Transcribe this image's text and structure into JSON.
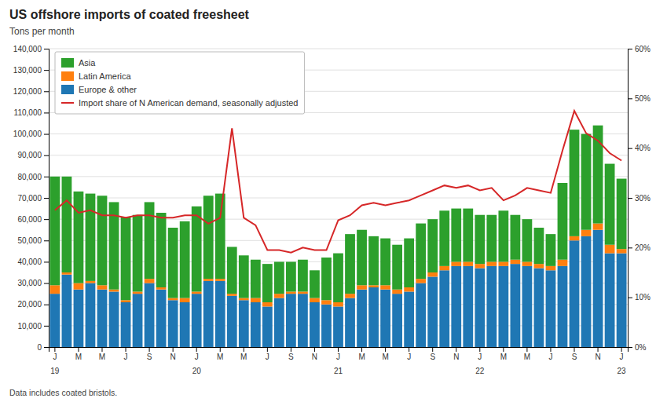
{
  "chart_data": {
    "type": "bar",
    "stacked": true,
    "title": "US offshore imports of coated freesheet",
    "subtitle": "Tons per month",
    "footnote": "Data includes coated bristols.",
    "categories": [
      "J",
      null,
      "M",
      null,
      "M",
      null,
      "J",
      null,
      "S",
      null,
      "N",
      null,
      "J",
      null,
      "M",
      null,
      "M",
      null,
      "J",
      null,
      "S",
      null,
      "N",
      null,
      "J",
      null,
      "M",
      null,
      "M",
      null,
      "J",
      null,
      "S",
      null,
      "N",
      null,
      "J",
      null,
      "M",
      null,
      "M",
      null,
      "J",
      null,
      "S",
      null,
      "N",
      null,
      "J"
    ],
    "annotations": [
      {
        "text": "19",
        "category": 0
      },
      {
        "text": "20",
        "category": 12
      },
      {
        "text": "21",
        "category": 24
      },
      {
        "text": "22",
        "category": 36
      },
      {
        "text": "23",
        "category": 48
      }
    ],
    "series": [
      {
        "name": "Europe & other",
        "type": "bar",
        "values": [
          25000,
          34000,
          27000,
          30000,
          27000,
          26000,
          21000,
          25000,
          30000,
          27000,
          22000,
          21000,
          25000,
          31000,
          31000,
          24000,
          22000,
          21000,
          19000,
          23000,
          25000,
          25000,
          21000,
          20000,
          19000,
          23000,
          27000,
          28000,
          27000,
          25000,
          26000,
          30000,
          33000,
          36000,
          38000,
          38000,
          37000,
          38000,
          38000,
          39000,
          38000,
          37000,
          36000,
          38000,
          50000,
          52000,
          55000,
          44000,
          44000
        ]
      },
      {
        "name": "Latin America",
        "type": "bar",
        "values": [
          4000,
          1000,
          3000,
          1000,
          2000,
          1000,
          1000,
          1000,
          2000,
          1000,
          1000,
          2000,
          1000,
          1000,
          1000,
          1000,
          1000,
          2000,
          2000,
          2000,
          1000,
          1000,
          2000,
          2000,
          2000,
          2000,
          2000,
          1000,
          2000,
          2000,
          2000,
          2000,
          2000,
          2000,
          2000,
          2000,
          2000,
          2000,
          2000,
          2000,
          2000,
          2000,
          2000,
          3000,
          2000,
          3000,
          3000,
          4000,
          2000
        ]
      },
      {
        "name": "Asia",
        "type": "bar",
        "values": [
          51000,
          45000,
          43000,
          41000,
          42000,
          41000,
          39000,
          36000,
          36000,
          35000,
          33000,
          36000,
          40000,
          39000,
          40000,
          22000,
          20000,
          18000,
          18000,
          15000,
          14000,
          15000,
          13000,
          20000,
          23000,
          28000,
          26000,
          23000,
          22000,
          21000,
          23000,
          26000,
          25000,
          26000,
          25000,
          25000,
          23000,
          22000,
          24000,
          21000,
          20000,
          17000,
          15000,
          36000,
          50000,
          45000,
          46000,
          38000,
          33000
        ]
      },
      {
        "name": "Import share of N American demand, seasonally adjusted",
        "type": "line",
        "axis": "y2",
        "values": [
          0.275,
          0.295,
          0.27,
          0.275,
          0.265,
          0.265,
          0.26,
          0.265,
          0.265,
          0.26,
          0.26,
          0.265,
          0.265,
          0.248,
          0.26,
          0.44,
          0.26,
          0.245,
          0.195,
          0.195,
          0.19,
          0.2,
          0.195,
          0.195,
          0.255,
          0.265,
          0.285,
          0.29,
          0.285,
          0.29,
          0.295,
          0.305,
          0.315,
          0.325,
          0.32,
          0.325,
          0.315,
          0.32,
          0.295,
          0.305,
          0.32,
          0.315,
          0.31,
          0.395,
          0.475,
          0.43,
          0.415,
          0.39,
          0.375
        ]
      }
    ],
    "ylim": [
      0,
      140000
    ],
    "yticks": [
      0,
      {
        "value": 10000,
        "label": "10,000"
      },
      {
        "value": 20000,
        "label": "20,000"
      },
      {
        "value": 30000,
        "label": "30,000"
      },
      {
        "value": 40000,
        "label": "40,000"
      },
      {
        "value": 50000,
        "label": "50,000"
      },
      {
        "value": 60000,
        "label": "60,000"
      },
      {
        "value": 70000,
        "label": "70,000"
      },
      {
        "value": 80000,
        "label": "80,000"
      },
      {
        "value": 90000,
        "label": "90,000"
      },
      {
        "value": 100000,
        "label": "100,000"
      },
      {
        "value": 110000,
        "label": "110,000"
      },
      {
        "value": 120000,
        "label": "120,000"
      },
      {
        "value": 130000,
        "label": "130,000"
      },
      {
        "value": 140000,
        "label": "140,000"
      }
    ],
    "y2lim": [
      0,
      0.6
    ],
    "y2ticks": [
      {
        "value": 0,
        "label": "0%"
      },
      {
        "value": 0.1,
        "label": "10%"
      },
      {
        "value": 0.2,
        "label": "20%"
      },
      {
        "value": 0.3,
        "label": "30%"
      },
      {
        "value": 0.4,
        "label": "40%"
      },
      {
        "value": 0.5,
        "label": "50%"
      },
      {
        "value": 0.6,
        "label": "60%"
      }
    ],
    "grid": true,
    "legend": "upper left"
  }
}
